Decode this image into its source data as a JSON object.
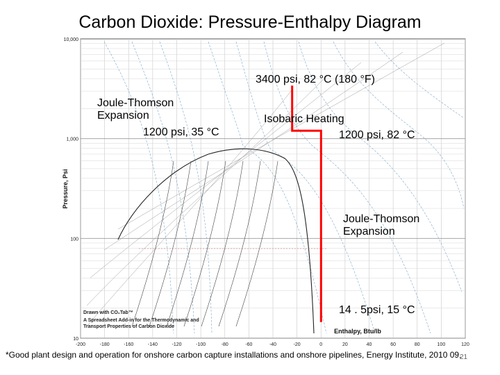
{
  "slide": {
    "title": "Carbon Dioxide: Pressure-Enthalpy Diagram",
    "footnote": "*Good plant design and operation for onshore carbon capture installations and onshore pipelines,  Energy Institute, 2010 09,",
    "page_number": "21"
  },
  "chart_data": {
    "type": "line",
    "xlabel": "Enthalpy, Btu/lb",
    "ylabel": "Pressure, Psi",
    "x_ticks": [
      -200,
      -180,
      -160,
      -140,
      -120,
      -100,
      -80,
      -60,
      -40,
      -20,
      0,
      20,
      40,
      60,
      80,
      100,
      120
    ],
    "y_ticks": [
      {
        "value": 10,
        "label": "10"
      },
      {
        "value": 100,
        "label": "100"
      },
      {
        "value": 1000,
        "label": "1,000"
      },
      {
        "value": 10000,
        "label": "10,000"
      }
    ],
    "xlim": [
      -200,
      120
    ],
    "ylim": [
      10,
      10000
    ],
    "y_scale": "log",
    "grid": true,
    "credit": [
      "Drawn with CO₂Tab™",
      "A Spreadsheet Add-in for the Thermodynamic and",
      "Transport Properties of Carbon Dioxide"
    ],
    "process_path": {
      "color": "#ff0000",
      "points": [
        {
          "x": -24,
          "y": 3400
        },
        {
          "x": -24,
          "y": 1200
        },
        {
          "x": 0,
          "y": 1200
        },
        {
          "x": 0,
          "y": 14.5
        }
      ]
    },
    "annotations": [
      {
        "id": "top",
        "text": "3400 psi, 82 °C (180 °F)"
      },
      {
        "id": "jt1",
        "lines": [
          "Joule-Thomson",
          "Expansion"
        ]
      },
      {
        "id": "p1200-35",
        "text": "1200 psi, 35 °C"
      },
      {
        "id": "isobaric",
        "text": "Isobaric Heating"
      },
      {
        "id": "p1200-82",
        "text": "1200 psi, 82 °C"
      },
      {
        "id": "jt2",
        "lines": [
          "Joule-Thomson",
          "Expansion"
        ]
      },
      {
        "id": "bottom",
        "text": "14 . 5psi, 15 °C"
      }
    ]
  }
}
